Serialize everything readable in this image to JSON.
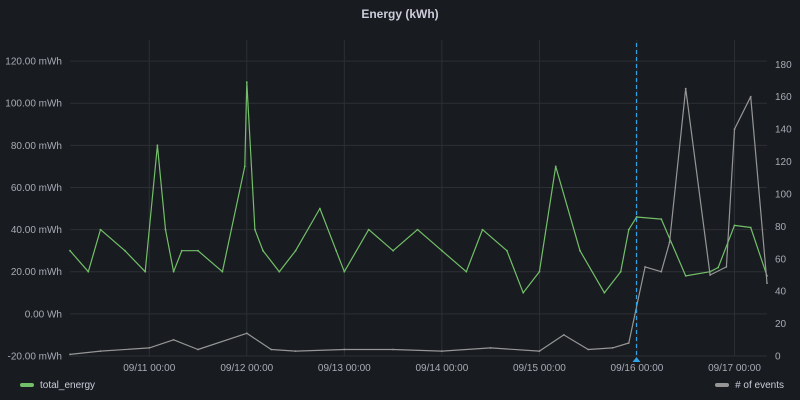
{
  "panel": {
    "title": "Energy (kWh)"
  },
  "chart_data": {
    "type": "line",
    "title": "Energy (kWh)",
    "x_ticks": [
      "09/11 00:00",
      "09/12 00:00",
      "09/13 00:00",
      "09/14 00:00",
      "09/15 00:00",
      "09/16 00:00",
      "09/17 00:00"
    ],
    "x_range": [
      "09/10 04:30",
      "09/17 08:00"
    ],
    "y_left": {
      "ticks": [
        "-20.00 mWh",
        "0.00 Wh",
        "20.00 mWh",
        "40.00 mWh",
        "60.00 mWh",
        "80.00 mWh",
        "100.00 mWh",
        "120.00 mWh"
      ],
      "range": [
        -20,
        130
      ],
      "unit": "mWh"
    },
    "y_right": {
      "ticks": [
        "0",
        "20",
        "40",
        "60",
        "80",
        "100",
        "120",
        "140",
        "160",
        "180"
      ],
      "range": [
        0,
        195
      ]
    },
    "grid": true,
    "legend_placement": "bottom",
    "marker": {
      "x": "09/15 23:53"
    },
    "series": [
      {
        "name": "total_energy",
        "axis": "left",
        "color": "#73bf69",
        "x": [
          "09/10 04:30",
          "09/10 09:00",
          "09/10 12:00",
          "09/10 18:00",
          "09/10 23:00",
          "09/11 02:00",
          "09/11 04:00",
          "09/11 06:00",
          "09/11 08:00",
          "09/11 12:00",
          "09/11 18:00",
          "09/11 23:30",
          "09/12 00:00",
          "09/12 02:00",
          "09/12 04:00",
          "09/12 08:00",
          "09/12 12:00",
          "09/12 18:00",
          "09/12 22:00",
          "09/13 00:00",
          "09/13 06:00",
          "09/13 12:00",
          "09/13 18:00",
          "09/14 00:00",
          "09/14 06:00",
          "09/14 10:00",
          "09/14 16:00",
          "09/14 20:00",
          "09/15 00:00",
          "09/15 04:00",
          "09/15 10:00",
          "09/15 16:00",
          "09/15 20:00",
          "09/15 22:00",
          "09/15 23:55",
          "09/16 06:00",
          "09/16 12:00",
          "09/16 18:00",
          "09/16 20:00",
          "09/17 00:00",
          "09/17 04:00",
          "09/17 08:00"
        ],
        "values": [
          30,
          20,
          40,
          30,
          20,
          80,
          40,
          20,
          30,
          30,
          20,
          70,
          110,
          40,
          30,
          20,
          30,
          50,
          30,
          20,
          40,
          30,
          40,
          30,
          20,
          40,
          30,
          10,
          20,
          70,
          30,
          10,
          20,
          40,
          46,
          45,
          18,
          20,
          22,
          42,
          41,
          18
        ]
      },
      {
        "name": "# of events",
        "axis": "right",
        "color": "#969696",
        "x": [
          "09/10 04:30",
          "09/10 12:00",
          "09/11 00:00",
          "09/11 06:00",
          "09/11 12:00",
          "09/12 00:00",
          "09/12 06:00",
          "09/12 12:00",
          "09/13 00:00",
          "09/13 12:00",
          "09/14 00:00",
          "09/14 12:00",
          "09/15 00:00",
          "09/15 06:00",
          "09/15 12:00",
          "09/15 18:00",
          "09/15 22:00",
          "09/16 02:00",
          "09/16 06:00",
          "09/16 08:00",
          "09/16 12:00",
          "09/16 18:00",
          "09/16 22:00",
          "09/17 00:00",
          "09/17 04:00",
          "09/17 08:00"
        ],
        "values": [
          1,
          3,
          5,
          10,
          4,
          14,
          4,
          3,
          4,
          4,
          3,
          5,
          3,
          13,
          4,
          5,
          8,
          55,
          52,
          70,
          165,
          50,
          55,
          140,
          160,
          45
        ]
      }
    ]
  },
  "legend": {
    "left_label": "total_energy",
    "right_label": "# of events"
  }
}
